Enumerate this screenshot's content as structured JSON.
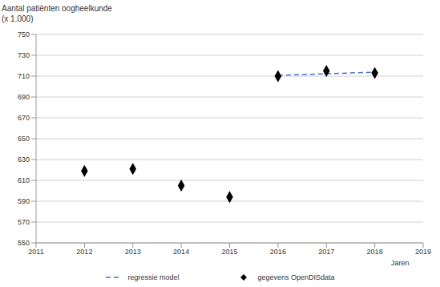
{
  "chart_data": {
    "type": "scatter",
    "title": "Aantal patiënten oogheelkunde",
    "subtitle": "(x 1.000)",
    "x_label": "Jaren",
    "xlim": [
      2011,
      2019
    ],
    "xticks": [
      2011,
      2012,
      2013,
      2014,
      2015,
      2016,
      2017,
      2018,
      2019
    ],
    "ylim": [
      550,
      750
    ],
    "yticks": [
      550,
      570,
      590,
      610,
      630,
      650,
      670,
      690,
      710,
      730,
      750
    ],
    "grid": true,
    "legend": "bottom",
    "series": [
      {
        "name": "regressie model",
        "type": "line",
        "line_style": "dashed",
        "color": "#4472c4",
        "x": [
          2016,
          2017,
          2018
        ],
        "values": [
          710.8,
          712.3,
          713.8
        ]
      },
      {
        "name": "gegevens OpenDISdata",
        "type": "scatter",
        "marker": "diamond",
        "color": "#000000",
        "x": [
          2012,
          2013,
          2014,
          2015,
          2016,
          2017,
          2018
        ],
        "values": [
          619,
          621,
          605,
          594,
          710,
          715,
          713
        ]
      }
    ]
  }
}
